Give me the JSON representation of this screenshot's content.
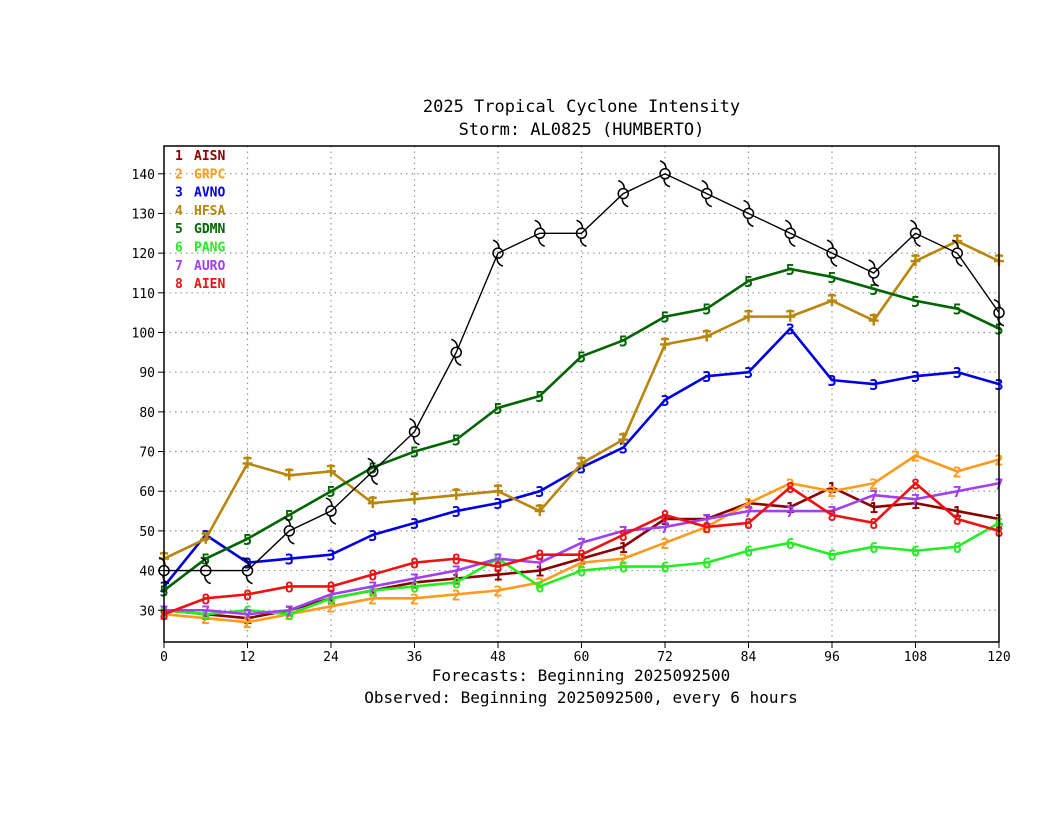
{
  "chart_data": {
    "type": "line",
    "title": "2025 Tropical Cyclone Intensity",
    "subtitle": "Storm: AL0825 (HUMBERTO)",
    "xlabel": "Forecasts: Beginning 2025092500",
    "xlabel2": "Observed: Beginning 2025092500, every 6 hours",
    "ylabel": "",
    "xlim": [
      0,
      120
    ],
    "ylim": [
      22,
      147
    ],
    "xticks": [
      "0",
      "12",
      "24",
      "36",
      "48",
      "60",
      "72",
      "84",
      "96",
      "108",
      "120"
    ],
    "yticks": [
      "30",
      "40",
      "50",
      "60",
      "70",
      "80",
      "90",
      "100",
      "110",
      "120",
      "130",
      "140"
    ],
    "grid": true,
    "legend_position": "top-left",
    "x": [
      0,
      6,
      12,
      18,
      24,
      30,
      36,
      42,
      48,
      54,
      60,
      66,
      72,
      78,
      84,
      90,
      96,
      102,
      108,
      114,
      120
    ],
    "observed": {
      "name": "Observed",
      "color": "#000000",
      "marker": "hurricane-symbol",
      "values": [
        40,
        40,
        40,
        50,
        55,
        65,
        75,
        95,
        120,
        125,
        125,
        135,
        140,
        135,
        130,
        125,
        120,
        115,
        125,
        120,
        105
      ]
    },
    "series": [
      {
        "id": "1",
        "name": "AISN",
        "color": "#8b0000",
        "values": [
          30,
          29,
          28,
          30,
          33,
          35,
          37,
          38,
          39,
          40,
          43,
          46,
          53,
          53,
          57,
          56,
          61,
          56,
          57,
          55,
          53
        ]
      },
      {
        "id": "2",
        "name": "GRPC",
        "color": "#ff9a1a",
        "values": [
          29,
          28,
          27,
          29,
          31,
          33,
          33,
          34,
          35,
          37,
          42,
          43,
          47,
          51,
          57,
          62,
          60,
          62,
          69,
          65,
          68
        ]
      },
      {
        "id": "3",
        "name": "AVNO",
        "color": "#0000e0",
        "values": [
          36,
          49,
          42,
          43,
          44,
          49,
          52,
          55,
          57,
          60,
          66,
          71,
          83,
          89,
          90,
          101,
          88,
          87,
          89,
          90,
          87
        ]
      },
      {
        "id": "4",
        "name": "HFSA",
        "color": "#b8860b",
        "values": [
          43,
          48,
          67,
          64,
          65,
          57,
          58,
          59,
          60,
          55,
          67,
          73,
          97,
          99,
          104,
          104,
          108,
          103,
          118,
          123,
          118
        ]
      },
      {
        "id": "5",
        "name": "GDMN",
        "color": "#006400",
        "values": [
          35,
          43,
          48,
          54,
          60,
          66,
          70,
          73,
          81,
          84,
          94,
          98,
          104,
          106,
          113,
          116,
          114,
          111,
          108,
          106,
          101
        ]
      },
      {
        "id": "6",
        "name": "PANG",
        "color": "#22ee22",
        "values": [
          30,
          29,
          30,
          29,
          33,
          35,
          36,
          37,
          43,
          36,
          40,
          41,
          41,
          42,
          45,
          47,
          44,
          46,
          45,
          46,
          52
        ]
      },
      {
        "id": "7",
        "name": "AURO",
        "color": "#a040f0",
        "values": [
          30,
          30,
          29,
          30,
          34,
          36,
          38,
          40,
          43,
          42,
          47,
          50,
          51,
          53,
          55,
          55,
          55,
          59,
          58,
          60,
          62
        ]
      },
      {
        "id": "8",
        "name": "AIEN",
        "color": "#ee1111",
        "values": [
          29,
          33,
          34,
          36,
          36,
          39,
          42,
          43,
          41,
          44,
          44,
          49,
          54,
          51,
          52,
          61,
          54,
          52,
          62,
          53,
          50
        ]
      }
    ]
  }
}
